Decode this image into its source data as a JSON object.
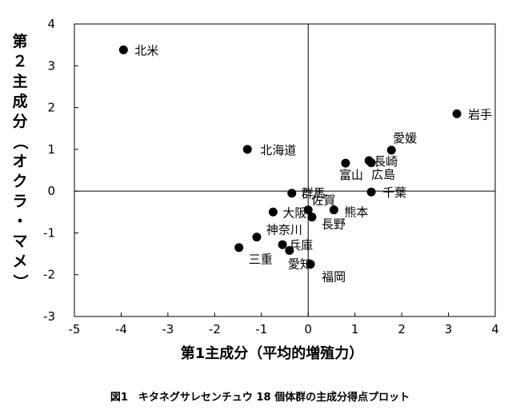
{
  "chart_data": {
    "type": "scatter",
    "xlabel": "第1主成分（平均的増殖力）",
    "ylabel": "第２主成分（オクラ・マメ）",
    "caption": "図1　キタネグサレセンチュウ 18 個体群の主成分得点プロット",
    "xlim": [
      -5,
      4
    ],
    "ylim": [
      -3,
      4
    ],
    "xticks": [
      -5,
      -4,
      -3,
      -2,
      -1,
      0,
      1,
      2,
      3,
      4
    ],
    "yticks": [
      -3,
      -2,
      -1,
      0,
      1,
      2,
      3,
      4
    ],
    "reference_lines": {
      "x": 0,
      "y": 0
    },
    "points": [
      {
        "label": "北米",
        "x": -3.95,
        "y": 3.38
      },
      {
        "label": "岩手",
        "x": 3.18,
        "y": 1.85
      },
      {
        "label": "北海道",
        "x": -1.3,
        "y": 1.0
      },
      {
        "label": "愛媛",
        "x": 1.78,
        "y": 0.98
      },
      {
        "label": "長崎",
        "x": 1.3,
        "y": 0.73
      },
      {
        "label": "富山",
        "x": 0.8,
        "y": 0.67
      },
      {
        "label": "広島",
        "x": 1.35,
        "y": 0.68
      },
      {
        "label": "千葉",
        "x": 1.35,
        "y": -0.02
      },
      {
        "label": "群馬",
        "x": -0.35,
        "y": -0.05
      },
      {
        "label": "佐賀",
        "x": 0.0,
        "y": -0.45
      },
      {
        "label": "熊本",
        "x": 0.55,
        "y": -0.45
      },
      {
        "label": "大阪",
        "x": -0.75,
        "y": -0.5
      },
      {
        "label": "長野",
        "x": 0.08,
        "y": -0.62
      },
      {
        "label": "神奈川",
        "x": -1.1,
        "y": -1.1
      },
      {
        "label": "兵庫",
        "x": -0.55,
        "y": -1.28
      },
      {
        "label": "三重",
        "x": -1.48,
        "y": -1.35
      },
      {
        "label": "愛知",
        "x": -0.4,
        "y": -1.42
      },
      {
        "label": "福岡",
        "x": 0.05,
        "y": -1.75
      }
    ]
  }
}
